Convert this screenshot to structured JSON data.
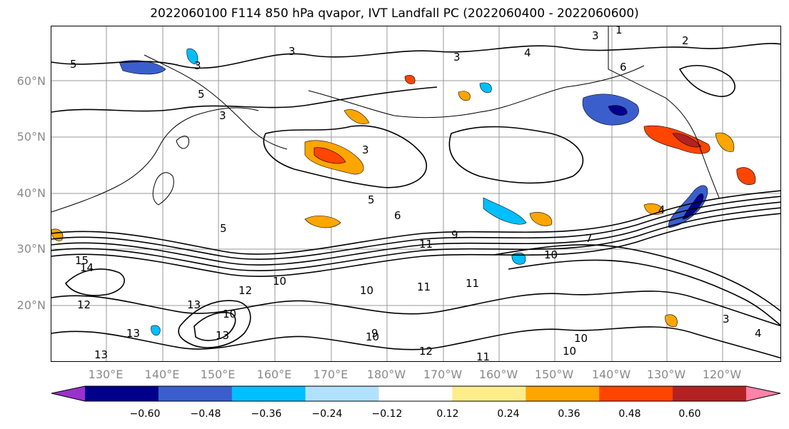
{
  "title": "2022060100 F114 850 hPa qvapor, IVT Landfall PC (2022060400 - 2022060600)",
  "lat_labels": [
    "60°N",
    "50°N",
    "40°N",
    "30°N",
    "20°N"
  ],
  "lon_labels": [
    "130°E",
    "140°E",
    "150°E",
    "160°E",
    "170°E",
    "180°W",
    "170°W",
    "160°W",
    "150°W",
    "140°W",
    "130°W",
    "120°W"
  ],
  "contour_labels": [
    "5",
    "3",
    "3",
    "3",
    "4",
    "3",
    "2",
    "1",
    "6",
    "5",
    "3",
    "3",
    "5",
    "5",
    "6",
    "9",
    "11",
    "10",
    "7",
    "4",
    "15",
    "14",
    "12",
    "13",
    "10",
    "12",
    "10",
    "10",
    "11",
    "11",
    "10",
    "9",
    "12",
    "13",
    "13",
    "11",
    "10",
    "3",
    "4",
    "10",
    "13"
  ],
  "colorbar": {
    "ticks": [
      "−0.60",
      "−0.48",
      "−0.36",
      "−0.24",
      "−0.12",
      "0.12",
      "0.24",
      "0.36",
      "0.48",
      "0.60"
    ],
    "colors": [
      "#9932cc",
      "#00008b",
      "#3a5fcd",
      "#00bfff",
      "#b0e2ff",
      "#ffffff",
      "#ffec8b",
      "#ffa500",
      "#ff4500",
      "#b22222",
      "#ff82ab"
    ]
  }
}
